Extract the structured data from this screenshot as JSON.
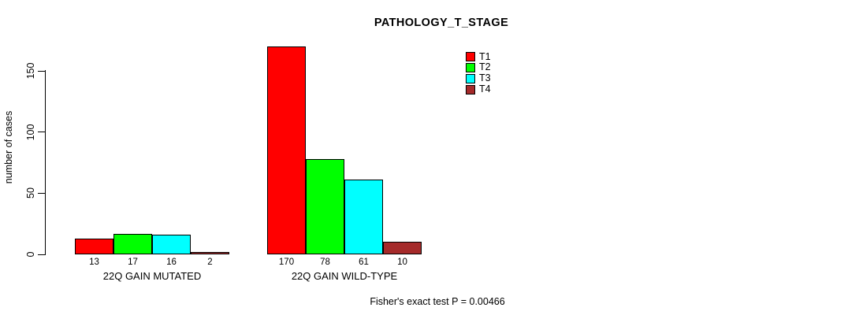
{
  "chart_data": {
    "type": "bar",
    "title": "PATHOLOGY_T_STAGE",
    "ylabel": "number of cases",
    "xlabel": "",
    "ylim": [
      0,
      170
    ],
    "yticks": [
      0,
      50,
      100,
      150
    ],
    "grid": false,
    "legend_position": "top-right-of-plot",
    "categories": [
      "22Q GAIN MUTATED",
      "22Q GAIN WILD-TYPE"
    ],
    "series": [
      {
        "name": "T1",
        "color": "#ff0000",
        "values": [
          13,
          170
        ]
      },
      {
        "name": "T2",
        "color": "#00ff00",
        "values": [
          17,
          78
        ]
      },
      {
        "name": "T3",
        "color": "#00ffff",
        "values": [
          16,
          61
        ]
      },
      {
        "name": "T4",
        "color": "#a52a2a",
        "values": [
          2,
          10
        ]
      }
    ],
    "footnote": "Fisher's exact test P = 0.00466"
  }
}
